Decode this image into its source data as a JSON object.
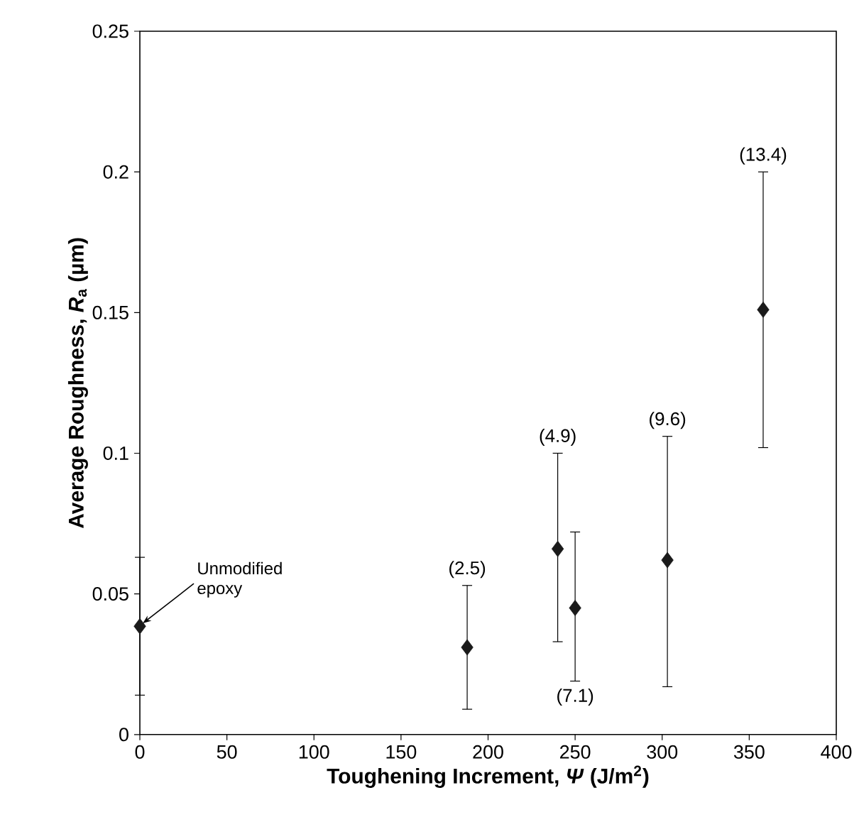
{
  "chart_data": {
    "type": "scatter",
    "xlabel": "**Toughening Increment, *Ψ* (J/m$^{2}$)**",
    "ylabel": "**Average Roughness, *R*$_{a}$ (µm)**",
    "x": [
      0,
      188,
      240,
      250,
      303,
      358
    ],
    "series": [
      {
        "color": "#1a1a1a",
        "values": [
          0.0385,
          0.031,
          0.066,
          0.045,
          0.062,
          0.151
        ],
        "errors": [
          [
            0.014,
            0.063
          ],
          [
            0.009,
            0.053
          ],
          [
            0.033,
            0.1
          ],
          [
            0.019,
            0.072
          ],
          [
            0.017,
            0.106
          ],
          [
            0.102,
            0.2
          ]
        ]
      }
    ],
    "marker": "diamond",
    "xlim": [
      0,
      400
    ],
    "ylim": [
      0,
      0.25
    ],
    "xticks": [
      0,
      50,
      100,
      150,
      200,
      250,
      300,
      350,
      400
    ],
    "yticks": [
      0,
      0.05,
      0.1,
      0.15,
      0.2,
      0.25
    ],
    "grid": false,
    "annotations": [
      {
        "text": "Unmodified epoxy",
        "x": 0,
        "y": 0.0385
      },
      {
        "text": "(2.5)",
        "x": 188,
        "y": 0.053
      },
      {
        "text": "(4.9)",
        "x": 240,
        "y": 0.1
      },
      {
        "text": "(7.1)",
        "x": 250,
        "y": 0.019
      },
      {
        "text": "(9.6)",
        "x": 303,
        "y": 0.106
      },
      {
        "text": "(13.4)",
        "x": 358,
        "y": 0.2
      }
    ]
  }
}
